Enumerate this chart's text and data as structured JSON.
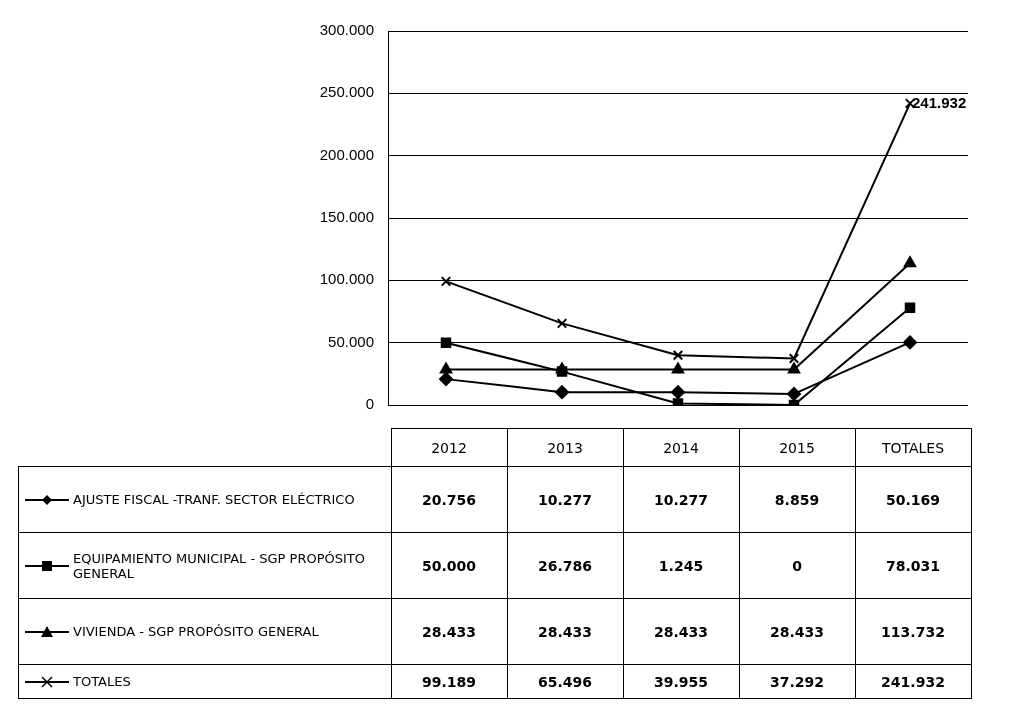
{
  "chart_data": {
    "type": "line",
    "categories": [
      "2012",
      "2013",
      "2014",
      "2015",
      "TOTALES"
    ],
    "series": [
      {
        "name": "AJUSTE FISCAL -TRANF. SECTOR ELÉCTRICO",
        "color": "#000000",
        "marker": "diamond",
        "values": [
          20756,
          10277,
          10277,
          8859,
          50169
        ],
        "value_labels": [
          "20.756",
          "10.277",
          "10.277",
          "8.859",
          "50.169"
        ]
      },
      {
        "name": "EQUIPAMIENTO MUNICIPAL - SGP PROPÓSITO GENERAL",
        "color": "#000000",
        "marker": "square",
        "values": [
          50000,
          26786,
          1245,
          0,
          78031
        ],
        "value_labels": [
          "50.000",
          "26.786",
          "1.245",
          "0",
          "78.031"
        ]
      },
      {
        "name": "VIVIENDA - SGP PROPÓSITO GENERAL",
        "color": "#000000",
        "marker": "triangle",
        "values": [
          28433,
          28433,
          28433,
          28433,
          113732
        ],
        "value_labels": [
          "28.433",
          "28.433",
          "28.433",
          "28.433",
          "113.732"
        ]
      },
      {
        "name": "TOTALES",
        "color": "#000000",
        "marker": "cross",
        "values": [
          99189,
          65496,
          39955,
          37292,
          241932
        ],
        "value_labels": [
          "99.189",
          "65.496",
          "39.955",
          "37.292",
          "241.932"
        ]
      }
    ],
    "ylim": [
      0,
      300000
    ],
    "yticks": [
      0,
      {
        "value": 50000,
        "label": "50.000"
      },
      {
        "value": 100000,
        "label": "100.000"
      },
      {
        "value": 150000,
        "label": "150.000"
      },
      {
        "value": 200000,
        "label": "200.000"
      },
      {
        "value": 250000,
        "label": "250.000"
      },
      {
        "value": 300000,
        "label": "300.000"
      }
    ],
    "grid": "y",
    "legend": "bottom",
    "line_style": "solid",
    "annotations": [
      {
        "text": "241.932",
        "x": "TOTALES",
        "y": 241932
      }
    ]
  }
}
